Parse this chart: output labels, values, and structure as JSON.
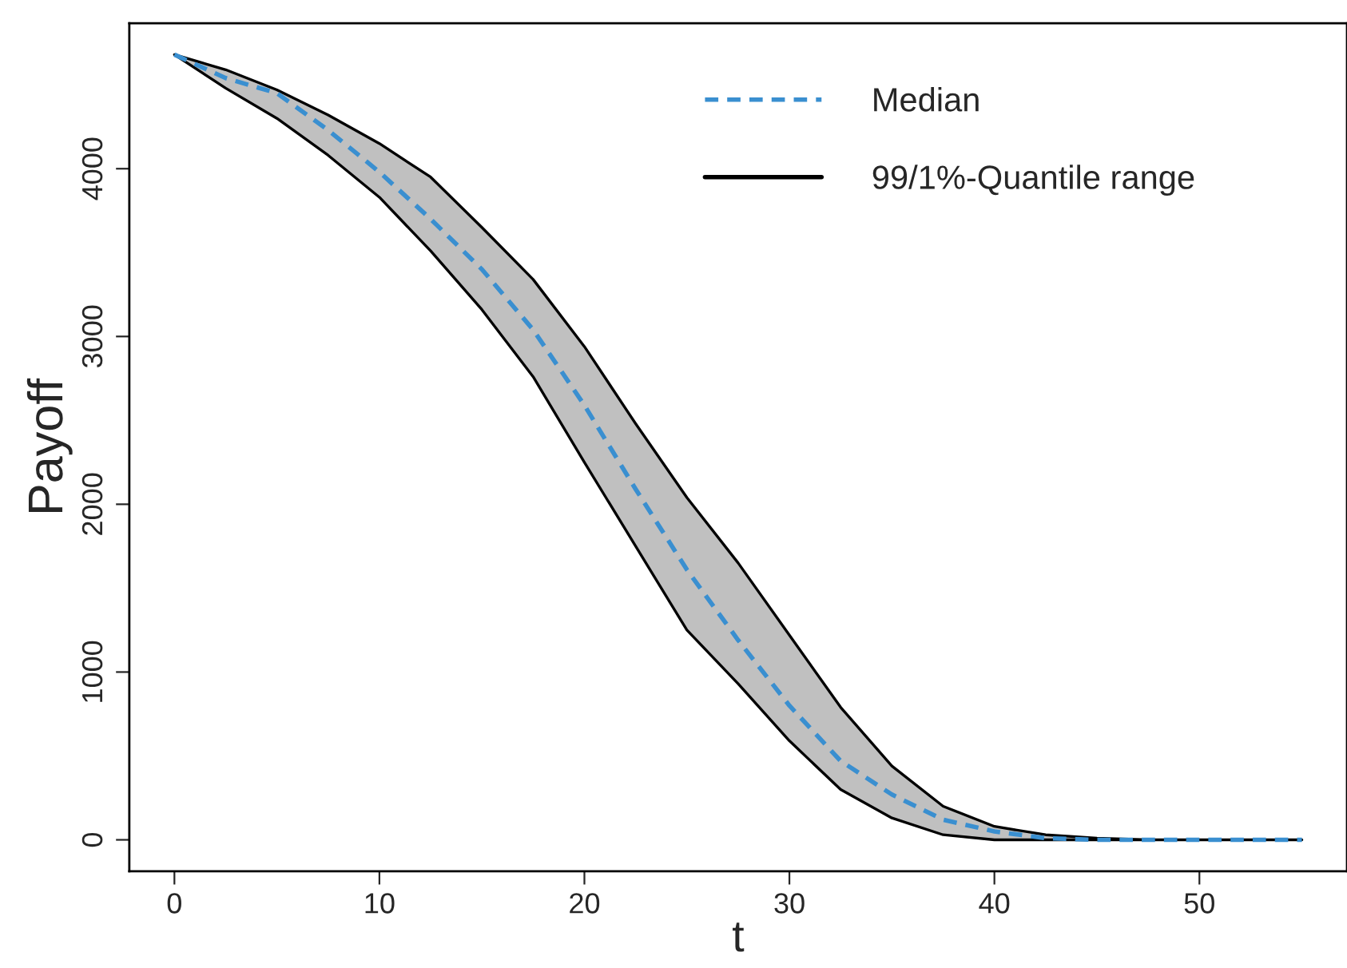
{
  "chart_data": {
    "type": "line",
    "xlabel": "t",
    "ylabel": "Payoff",
    "x": [
      0,
      2.5,
      5,
      7.5,
      10,
      12.5,
      15,
      17.5,
      20,
      22.5,
      25,
      27.5,
      30,
      32.5,
      35,
      37.5,
      40,
      42.5,
      45,
      47.5,
      50,
      55
    ],
    "series": [
      {
        "name": "Median",
        "color": "#3a8fd0",
        "line_style": "dashed",
        "values": [
          4680,
          4540,
          4450,
          4230,
          3980,
          3700,
          3400,
          3040,
          2590,
          2090,
          1610,
          1190,
          800,
          470,
          270,
          120,
          50,
          10,
          0,
          0,
          0,
          0
        ]
      },
      {
        "name": "99/1%-Quantile range",
        "color": "#000000",
        "line_style": "solid",
        "values": [
          null,
          null,
          null,
          null,
          null,
          null,
          null,
          null,
          null,
          null,
          null,
          null,
          null,
          null,
          null,
          null,
          null,
          null,
          null,
          null,
          null,
          null
        ],
        "lower": [
          4680,
          4480,
          4300,
          4080,
          3830,
          3510,
          3160,
          2760,
          2250,
          1750,
          1250,
          930,
          590,
          300,
          130,
          30,
          0,
          0,
          0,
          0,
          0,
          0
        ],
        "upper": [
          4680,
          4590,
          4470,
          4320,
          4150,
          3950,
          3650,
          3340,
          2940,
          2480,
          2040,
          1650,
          1220,
          790,
          440,
          200,
          80,
          30,
          10,
          0,
          0,
          0
        ]
      }
    ],
    "xlim": [
      -2.2,
      57.2
    ],
    "ylim": [
      -187,
      4867
    ],
    "xticks": [
      0,
      10,
      20,
      30,
      40,
      50
    ],
    "yticks": [
      0,
      1000,
      2000,
      3000,
      4000
    ],
    "grid": false,
    "legend": "top right"
  }
}
